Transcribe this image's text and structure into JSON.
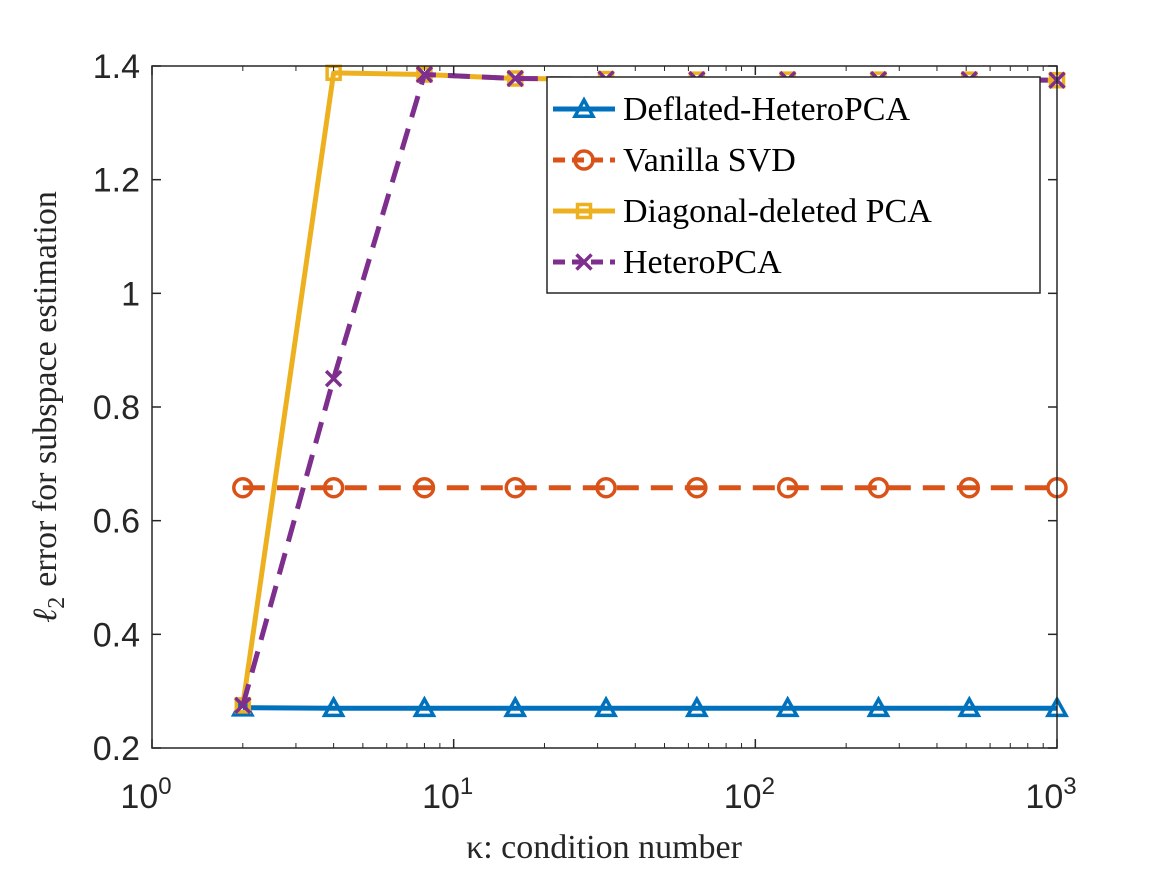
{
  "chart_data": {
    "type": "line",
    "title": "",
    "xlabel": "κ: condition number",
    "ylabel": "error for subspace estimation",
    "ylabel_symbol": "ℓ",
    "ylabel_subscript": "2",
    "xscale": "log",
    "xlim": [
      1,
      1000
    ],
    "ylim": [
      0.2,
      1.4
    ],
    "x_ticks": [
      {
        "value": 1,
        "base": "10",
        "exp": "0"
      },
      {
        "value": 10,
        "base": "10",
        "exp": "1"
      },
      {
        "value": 100,
        "base": "10",
        "exp": "2"
      },
      {
        "value": 1000,
        "base": "10",
        "exp": "3"
      }
    ],
    "y_ticks": [
      {
        "value": 0.2,
        "label": "0.2"
      },
      {
        "value": 0.4,
        "label": "0.4"
      },
      {
        "value": 0.6,
        "label": "0.6"
      },
      {
        "value": 0.8,
        "label": "0.8"
      },
      {
        "value": 1.0,
        "label": "1"
      },
      {
        "value": 1.2,
        "label": "1.2"
      },
      {
        "value": 1.4,
        "label": "1.4"
      }
    ],
    "grid": false,
    "legend_position": "top-right",
    "x": [
      2,
      4,
      8,
      16,
      32,
      64,
      128,
      256,
      512,
      1000
    ],
    "series": [
      {
        "name": "Deflated-HeteroPCA",
        "color": "#0072BD",
        "dash": "solid",
        "marker": "triangle",
        "values": [
          0.271,
          0.27,
          0.27,
          0.27,
          0.27,
          0.27,
          0.27,
          0.27,
          0.27,
          0.27
        ]
      },
      {
        "name": "Vanilla SVD",
        "color": "#D95319",
        "dash": "dashed",
        "marker": "circle",
        "values": [
          0.658,
          0.658,
          0.658,
          0.658,
          0.658,
          0.658,
          0.658,
          0.658,
          0.658,
          0.658
        ]
      },
      {
        "name": "Diagonal-deleted PCA",
        "color": "#EDB120",
        "dash": "solid",
        "marker": "square",
        "values": [
          0.275,
          1.388,
          1.385,
          1.378,
          1.377,
          1.376,
          1.376,
          1.376,
          1.376,
          1.375
        ]
      },
      {
        "name": "HeteroPCA",
        "color": "#7E2F8E",
        "dash": "dashed",
        "marker": "x",
        "values": [
          0.275,
          0.85,
          1.385,
          1.378,
          1.377,
          1.376,
          1.376,
          1.376,
          1.376,
          1.375
        ]
      }
    ]
  }
}
